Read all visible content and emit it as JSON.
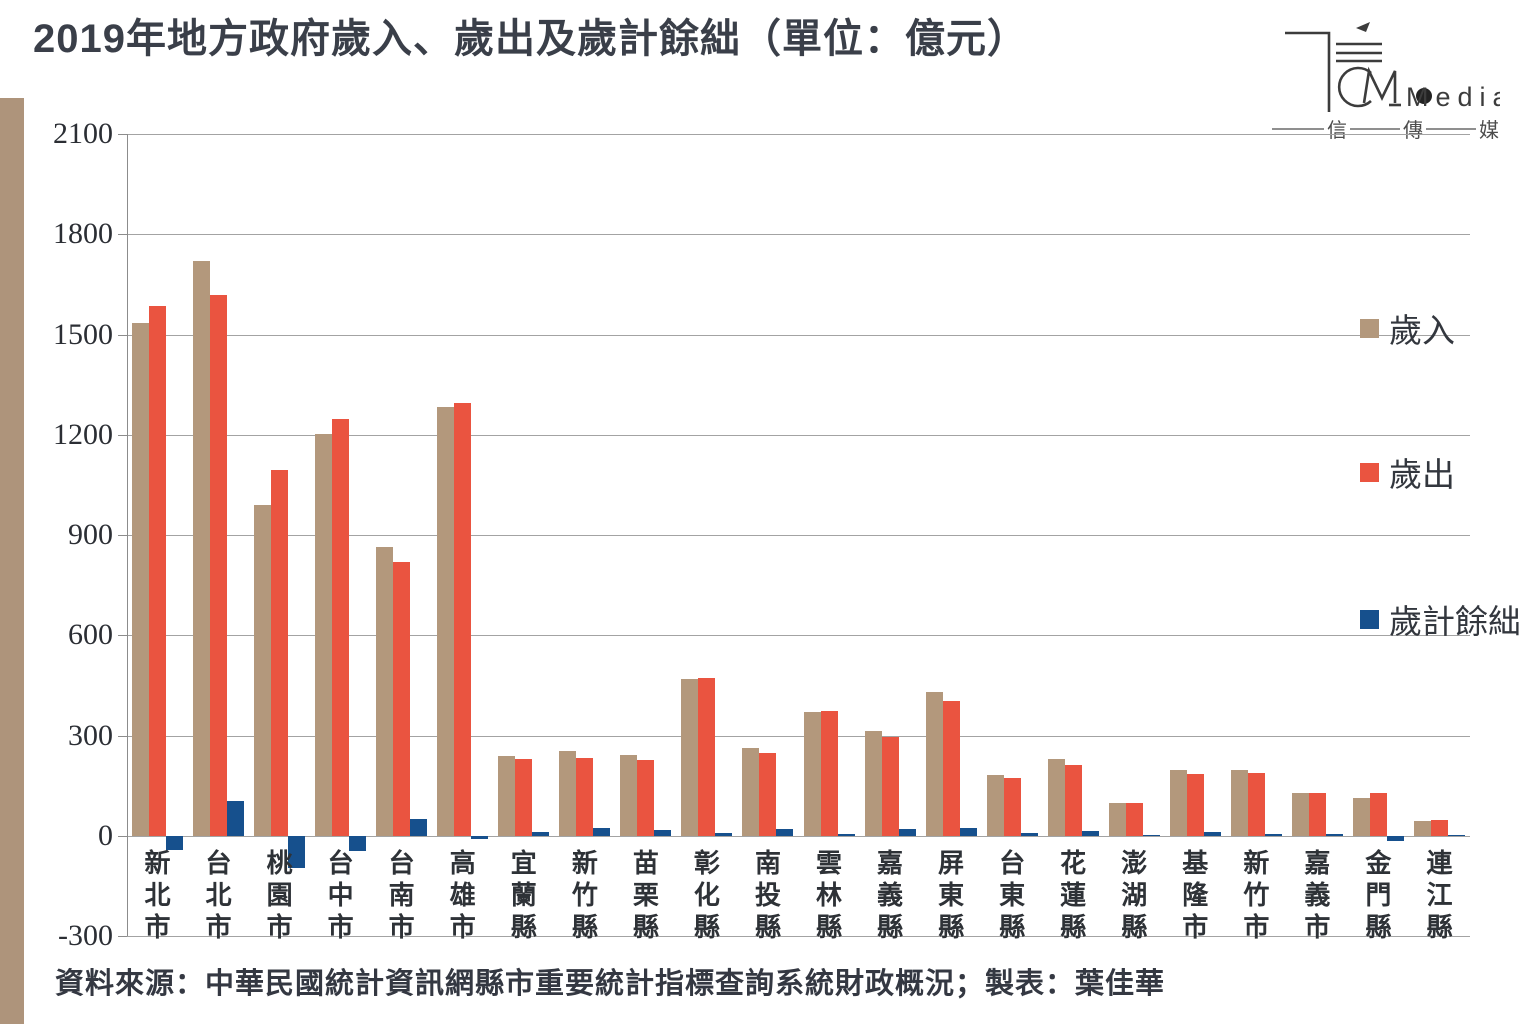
{
  "title": "2019年地方政府歲入、歲出及歲計餘絀（單位：億元）",
  "source": "資料來源：中華民國統計資訊網縣市重要統計指標查詢系統財政概況；製表：葉佳華",
  "logo": {
    "brand": "Media",
    "chinese_1": "信",
    "chinese_2": "傳",
    "chinese_3": "媒"
  },
  "colors": {
    "revenue": "#b3987c",
    "expenditure": "#ea5440",
    "surplus": "#16508d",
    "stripe": "#ae947b",
    "grid": "#a3a3a3",
    "axis": "#8c8c8c"
  },
  "chart_data": {
    "type": "bar",
    "title": "2019年地方政府歲入、歲出及歲計餘絀（單位：億元）",
    "unit": "億元",
    "categories": [
      "新北市",
      "台北市",
      "桃園市",
      "台中市",
      "台南市",
      "高雄市",
      "宜蘭縣",
      "新竹縣",
      "苗栗縣",
      "彰化縣",
      "南投縣",
      "雲林縣",
      "嘉義縣",
      "屏東縣",
      "台東縣",
      "花蓮縣",
      "澎湖縣",
      "基隆市",
      "新竹市",
      "嘉義市",
      "金門縣",
      "連江縣"
    ],
    "series": [
      {
        "name": "歲入",
        "color": "#b3987c",
        "values": [
          1535,
          1720,
          990,
          1203,
          865,
          1282,
          238,
          255,
          243,
          470,
          262,
          371,
          312,
          430,
          182,
          230,
          99,
          197,
          197,
          129,
          112,
          45
        ]
      },
      {
        "name": "歲出",
        "color": "#ea5440",
        "values": [
          1584,
          1617,
          1095,
          1248,
          818,
          1295,
          231,
          234,
          227,
          472,
          247,
          373,
          297,
          404,
          174,
          213,
          99,
          186,
          189,
          127,
          129,
          48
        ]
      },
      {
        "name": "歲計餘絀",
        "color": "#16508d",
        "values": [
          -42,
          105,
          -96,
          -45,
          51,
          -10,
          10,
          22,
          16,
          8,
          20,
          5,
          20,
          22,
          8,
          13,
          2,
          12,
          5,
          4,
          -15,
          1
        ]
      }
    ],
    "ylim": [
      -300,
      2100
    ],
    "yticks": [
      2100,
      1800,
      1500,
      1200,
      900,
      600,
      300,
      0,
      -300
    ],
    "grid": true,
    "legend_position": "right"
  }
}
